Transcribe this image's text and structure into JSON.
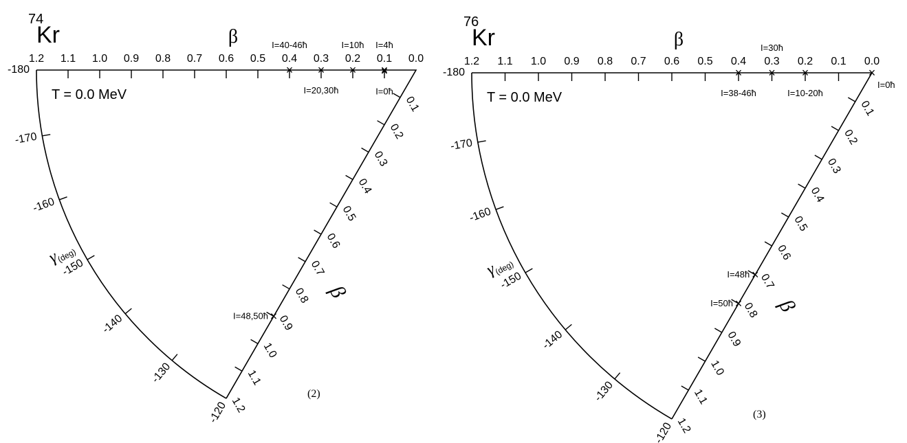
{
  "chart_data": [
    {
      "type": "scatter",
      "nucleus_mass": "74",
      "nucleus_symbol": "Kr",
      "beta_label": "β",
      "beta_label_side": "β",
      "gamma_label": "γ",
      "gamma_unit": "(deg)",
      "temperature_label": "T = 0.0 MeV",
      "panel_label": "(2)",
      "beta_ticks": [
        "1.2",
        "1.1",
        "1.0",
        "0.9",
        "0.8",
        "0.7",
        "0.6",
        "0.5",
        "0.4",
        "0.3",
        "0.2",
        "0.1",
        "0.0"
      ],
      "side_beta_ticks": [
        "0.1",
        "0.2",
        "0.3",
        "0.4",
        "0.5",
        "0.6",
        "0.7",
        "0.8",
        "0.9",
        "1.0",
        "1.1",
        "1.2"
      ],
      "gamma_ticks": [
        "-180",
        "-170",
        "-160",
        "-150",
        "-140",
        "-130",
        "-120"
      ],
      "beta_range": [
        0,
        1.2
      ],
      "gamma_range": [
        -180,
        -120
      ],
      "points": [
        {
          "label": "I=40-46ħ",
          "beta": 0.4,
          "gamma": -180,
          "label_pos": "above"
        },
        {
          "label": "I=20,30ħ",
          "beta": 0.3,
          "gamma": -180,
          "label_pos": "below"
        },
        {
          "label": "I=10ħ",
          "beta": 0.2,
          "gamma": -180,
          "label_pos": "above"
        },
        {
          "label": "I=4ħ",
          "beta": 0.1,
          "gamma": -180,
          "label_pos": "above"
        },
        {
          "label": "I=0ħ",
          "beta": 0.1,
          "gamma": -178,
          "label_pos": "below"
        },
        {
          "label": "I=48,50ħ",
          "beta": 0.9,
          "gamma": -120,
          "label_pos": "left"
        }
      ]
    },
    {
      "type": "scatter",
      "nucleus_mass": "76",
      "nucleus_symbol": "Kr",
      "beta_label": "β",
      "beta_label_side": "β",
      "gamma_label": "γ",
      "gamma_unit": "(deg)",
      "temperature_label": "T = 0.0 MeV",
      "panel_label": "(3)",
      "beta_ticks": [
        "1.2",
        "1.1",
        "1.0",
        "0.9",
        "0.8",
        "0.7",
        "0.6",
        "0.5",
        "0.4",
        "0.3",
        "0.2",
        "0.1",
        "0.0"
      ],
      "side_beta_ticks": [
        "0.1",
        "0.2",
        "0.3",
        "0.4",
        "0.5",
        "0.6",
        "0.7",
        "0.8",
        "0.9",
        "1.0",
        "1.1",
        "1.2"
      ],
      "gamma_ticks": [
        "-180",
        "-170",
        "-160",
        "-150",
        "-140",
        "-130",
        "-120"
      ],
      "beta_range": [
        0,
        1.2
      ],
      "gamma_range": [
        -180,
        -120
      ],
      "points": [
        {
          "label": "I=38-46ħ",
          "beta": 0.4,
          "gamma": -180,
          "label_pos": "below"
        },
        {
          "label": "I=30ħ",
          "beta": 0.3,
          "gamma": -180,
          "label_pos": "above"
        },
        {
          "label": "I=10-20ħ",
          "beta": 0.2,
          "gamma": -180,
          "label_pos": "below"
        },
        {
          "label": "I=0ħ",
          "beta": 0.0,
          "gamma": -180,
          "label_pos": "right"
        },
        {
          "label": "I=48ħ",
          "beta": 0.7,
          "gamma": -120,
          "label_pos": "left"
        },
        {
          "label": "I=50ħ",
          "beta": 0.8,
          "gamma": -120,
          "label_pos": "left"
        }
      ]
    }
  ]
}
